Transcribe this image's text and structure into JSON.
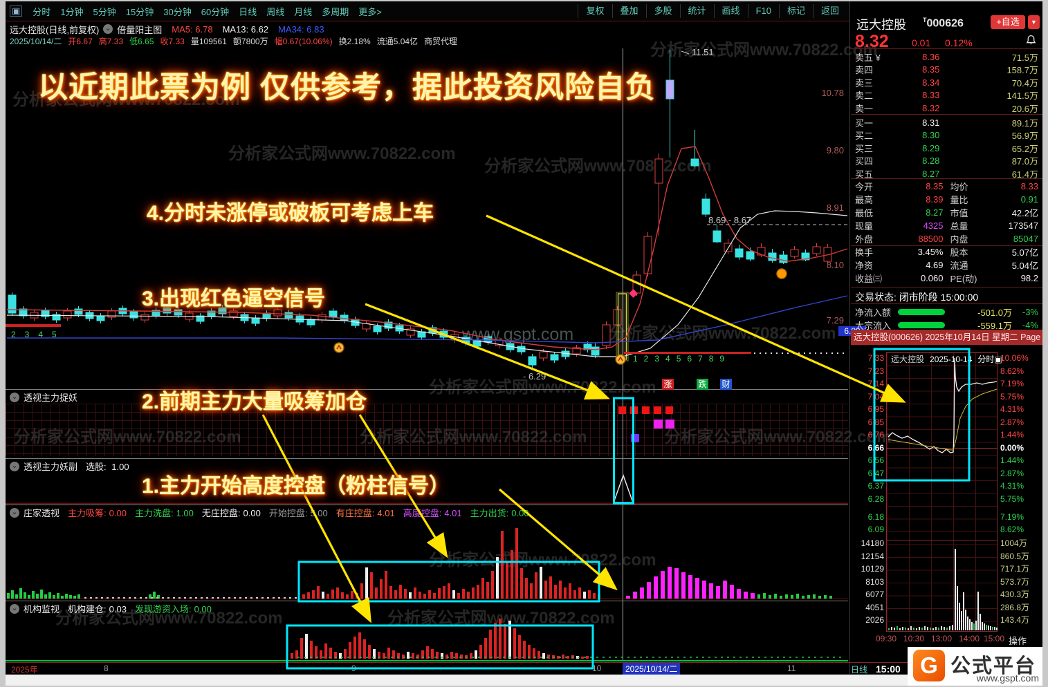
{
  "menu": {
    "window_icon": "▣",
    "left_items": [
      "分时",
      "1分钟",
      "5分钟",
      "15分钟",
      "30分钟",
      "60分钟",
      "日线",
      "周线",
      "月线",
      "多周期",
      "更多>"
    ],
    "right_items": [
      "复权",
      "叠加",
      "多股",
      "统计",
      "画线",
      "F10",
      "标记",
      "返回"
    ]
  },
  "chart_header": {
    "title": "远大控股(日线,前复权)",
    "indicator": "倍量阳主图",
    "ma5": "MA5: 6.78",
    "ma13": "MA13: 6.62",
    "ma34": "MA34: 6.83"
  },
  "info_bar": {
    "date": "2025/10/14/二",
    "open": "开6.67",
    "high": "高7.33",
    "low": "低6.65",
    "close": "收7.33",
    "volume": "量109561",
    "amount": "额7800万",
    "change": "幅0.67(10.06%)",
    "turnover": "换2.18%",
    "float_cap": "流通5.04亿",
    "sector": "商贸代理"
  },
  "annotations": {
    "headline": "以近期此票为例  仅供参考，据此投资风险自负",
    "note4": "4.分时未涨停或破板可考虑上车",
    "note3": "3.出现红色逼空信号",
    "note2": "2.前期主力大量吸筹加仓",
    "note1": "1.主力开始高度控盘（粉柱信号）"
  },
  "main_chart": {
    "y_labels": [
      "10.78",
      "9.80",
      "8.91",
      "8.10",
      "7.29"
    ],
    "last_price_tag": "6.89",
    "spike_label": "11.51",
    "range_label": "8.69 - 8.67",
    "low_label": "- 6.29",
    "left_counts": [
      "2",
      "3",
      "4",
      "5"
    ],
    "mid_counts": [
      "1",
      "2",
      "3",
      "4",
      "5",
      "6",
      "7",
      "8",
      "9"
    ],
    "badges": [
      "涨",
      "跌",
      "财"
    ]
  },
  "panel1": {
    "name": "透视主力捉妖"
  },
  "panel2": {
    "name": "透视主力妖副",
    "param_label": "选股:",
    "param_value": "1.00"
  },
  "panel3": {
    "name": "庄家透视",
    "params": [
      {
        "label": "主力吸筹:",
        "value": "0.00",
        "tone": "red"
      },
      {
        "label": "主力洗盘:",
        "value": "1.00",
        "tone": "green"
      },
      {
        "label": "无庄控盘:",
        "value": "0.00",
        "tone": "white"
      },
      {
        "label": "开始控盘:",
        "value": "5.00",
        "tone": "gray"
      },
      {
        "label": "有庄控盘:",
        "value": "4.01",
        "tone": "orange"
      },
      {
        "label": "高度控盘:",
        "value": "4.01",
        "tone": "magenta"
      },
      {
        "label": "主力出货:",
        "value": "0.00",
        "tone": "green"
      }
    ]
  },
  "panel4": {
    "name": "机构监视",
    "params": [
      {
        "label": "机构建仓:",
        "value": "0.03",
        "tone": "white"
      },
      {
        "label": "发现游资入场:",
        "value": "0.00",
        "tone": "green"
      }
    ]
  },
  "bottom_axis": {
    "year": "2025年",
    "tick8": "8",
    "tick9": "9",
    "tick10": "10",
    "current": "2025/10/14/二",
    "tick11": "11",
    "period": "日线",
    "time": "15:00"
  },
  "quote": {
    "name": "远大控股",
    "code": "000626",
    "fav": "+自选",
    "caret": "▼",
    "price": "8.32",
    "chg": "0.01",
    "pct": "0.12%",
    "sells": [
      {
        "label": "卖五 ¥",
        "price": "8.36",
        "vol": "71.5万"
      },
      {
        "label": "卖四",
        "price": "8.35",
        "vol": "158.7万"
      },
      {
        "label": "卖三",
        "price": "8.34",
        "vol": "70.4万"
      },
      {
        "label": "卖二",
        "price": "8.33",
        "vol": "141.5万"
      },
      {
        "label": "卖一",
        "price": "8.32",
        "vol": "20.6万"
      }
    ],
    "buys": [
      {
        "label": "买一",
        "price": "8.31",
        "vol": "89.1万",
        "tone": "white"
      },
      {
        "label": "买二",
        "price": "8.30",
        "vol": "56.9万",
        "tone": "green"
      },
      {
        "label": "买三",
        "price": "8.29",
        "vol": "65.2万",
        "tone": "green"
      },
      {
        "label": "买四",
        "price": "8.28",
        "vol": "87.0万",
        "tone": "green"
      },
      {
        "label": "买五",
        "price": "8.27",
        "vol": "61.4万",
        "tone": "green"
      }
    ],
    "stats": [
      {
        "l1": "今开",
        "v1": "8.35",
        "l2": "均价",
        "v2": "8.33",
        "c1": "red",
        "c2": "red"
      },
      {
        "l1": "最高",
        "v1": "8.39",
        "l2": "量比",
        "v2": "0.91",
        "c1": "red",
        "c2": "green"
      },
      {
        "l1": "最低",
        "v1": "8.27",
        "l2": "市值",
        "v2": "42.2亿",
        "c1": "green",
        "c2": "white"
      },
      {
        "l1": "现量",
        "v1": "4325",
        "l2": "总量",
        "v2": "173547",
        "c1": "magenta",
        "c2": "white"
      },
      {
        "l1": "外盘",
        "v1": "88500",
        "l2": "内盘",
        "v2": "85047",
        "c1": "red",
        "c2": "green"
      },
      {
        "l1": "换手",
        "v1": "3.45%",
        "l2": "股本",
        "v2": "5.07亿",
        "c1": "white",
        "c2": "white"
      },
      {
        "l1": "净资",
        "v1": "4.69",
        "l2": "流通",
        "v2": "5.04亿",
        "c1": "white",
        "c2": "white"
      },
      {
        "l1": "收益㈢",
        "v1": "0.060",
        "l2": "PE(动)",
        "v2": "98.2",
        "c1": "white",
        "c2": "white"
      }
    ],
    "status_label": "交易状态:",
    "status_value": "闭市阶段 15:00:00",
    "flows": [
      {
        "label": "净流入额",
        "value": "-501.0万",
        "pct": "-3%"
      },
      {
        "label": "大宗流入",
        "value": "-559.1万",
        "pct": "-4%"
      }
    ]
  },
  "intraday": {
    "header": "远大控股(000626) 2025年10月14日 星期二 Page",
    "title_name": "远大控股",
    "title_date": "2025-10-14",
    "title_kind": "分时▣",
    "scale_rows": [
      {
        "p": "7.33",
        "pct": "10.06%",
        "tone": "red"
      },
      {
        "p": "7.23",
        "pct": "8.62%",
        "tone": "red"
      },
      {
        "p": "7.14",
        "pct": "7.19%",
        "tone": "red"
      },
      {
        "p": "7.04",
        "pct": "5.75%",
        "tone": "red"
      },
      {
        "p": "6.95",
        "pct": "4.31%",
        "tone": "red"
      },
      {
        "p": "6.85",
        "pct": "2.87%",
        "tone": "red"
      },
      {
        "p": "6.76",
        "pct": "1.44%",
        "tone": "red"
      },
      {
        "p": "6.66",
        "pct": "0.00%",
        "tone": "flat"
      },
      {
        "p": "6.56",
        "pct": "1.44%",
        "tone": "green"
      },
      {
        "p": "6.47",
        "pct": "2.87%",
        "tone": "green"
      },
      {
        "p": "6.37",
        "pct": "4.31%",
        "tone": "green"
      },
      {
        "p": "6.28",
        "pct": "5.75%",
        "tone": "green"
      }
    ],
    "extra_rows": [
      {
        "p": "6.18",
        "pct": "7.19%",
        "tone": "green"
      },
      {
        "p": "6.09",
        "pct": "8.62%",
        "tone": "green"
      }
    ],
    "vol_rows": [
      {
        "v": "14180",
        "m": "1004万"
      },
      {
        "v": "12154",
        "m": "860.5万"
      },
      {
        "v": "10129",
        "m": "717.1万"
      },
      {
        "v": "8103",
        "m": "573.7万"
      },
      {
        "v": "6077",
        "m": "430.3万"
      },
      {
        "v": "4051",
        "m": "286.8万"
      },
      {
        "v": "2026",
        "m": "143.4万"
      }
    ],
    "times": [
      "09:30",
      "10:30",
      "13:00",
      "14:00",
      "15:00"
    ],
    "action": "操作"
  },
  "logo": {
    "g": "G",
    "brand": "公式平台",
    "url": "www.gspt.com"
  },
  "watermarks": {
    "site": "分析家公式网www.70822.com",
    "gspt": "www.gspt.com"
  }
}
